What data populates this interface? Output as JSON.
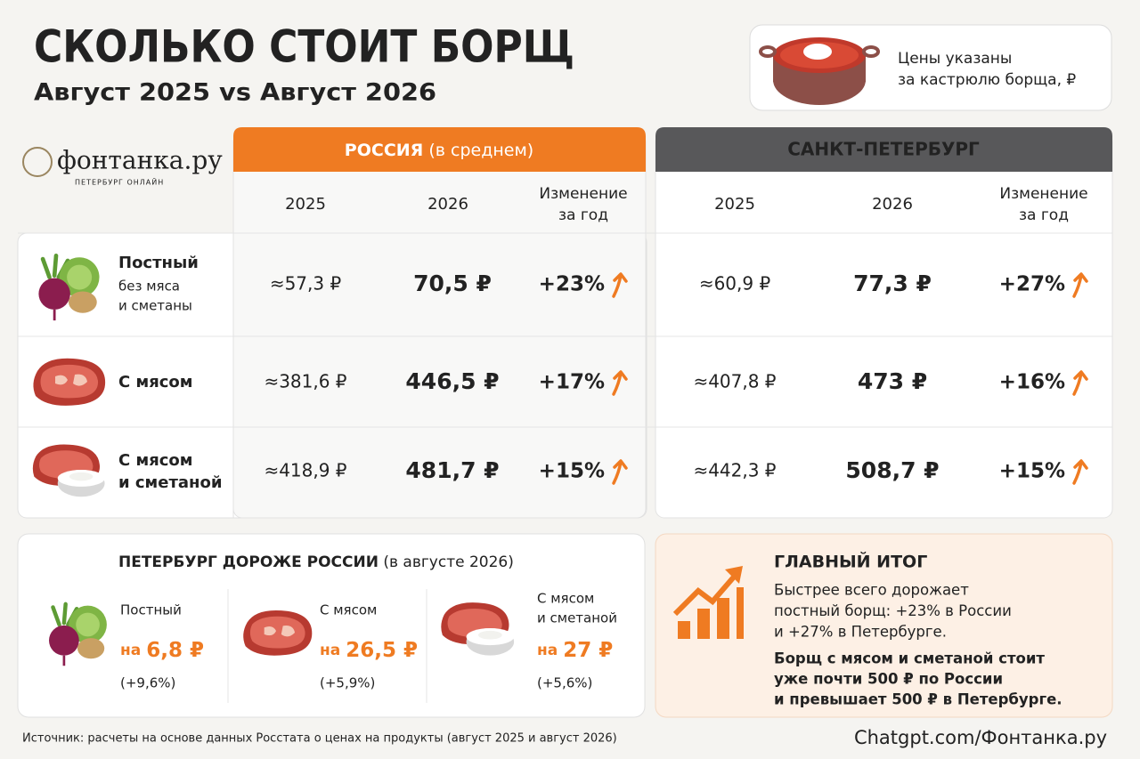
{
  "header": {
    "title": "СКОЛЬКО СТОИТ БОРЩ",
    "subtitle": "Август 2025 vs Август 2026"
  },
  "note": [
    "Цены указаны",
    "за кастрюлю борща, ₽"
  ],
  "logo": {
    "name": "фонтанка.ру",
    "tagline": "ПЕТЕРБУРГ ОНЛАЙН"
  },
  "table": {
    "groups": [
      {
        "title": "РОССИЯ",
        "subtitle": "(в среднем)",
        "columns": [
          "2025",
          "2026",
          [
            "Изменение",
            "за год"
          ]
        ]
      },
      {
        "title": "САНКТ-ПЕТЕРБУРГ",
        "columns": [
          "2025",
          "2026",
          [
            "Изменение",
            "за год"
          ]
        ]
      }
    ],
    "rows": [
      {
        "name": [
          "Постный"
        ],
        "note": [
          "без мяса",
          "и сметаны"
        ],
        "russia": [
          "≈57,3 ₽",
          "70,5 ₽",
          "+23%"
        ],
        "spb": [
          "≈60,9 ₽",
          "77,3 ₽",
          "+27%"
        ]
      },
      {
        "name": [
          "С мясом"
        ],
        "russia": [
          "≈381,6 ₽",
          "446,5 ₽",
          "+17%"
        ],
        "spb": [
          "≈407,8 ₽",
          "473 ₽",
          "+16%"
        ]
      },
      {
        "name": [
          "С мясом",
          "и сметаной"
        ],
        "russia": [
          "≈418,9 ₽",
          "481,7 ₽",
          "+15%"
        ],
        "spb": [
          "≈442,3 ₽",
          "508,7 ₽",
          "+15%"
        ]
      }
    ]
  },
  "comparison": {
    "title": "ПЕТЕРБУРГ ДОРОЖЕ РОССИИ",
    "title_note": "(в августе 2026)",
    "items": [
      {
        "name": [
          "Постный"
        ],
        "prefix": "на",
        "amount": "6,8 ₽",
        "percent": "(+9,6%)"
      },
      {
        "name": [
          "С мясом"
        ],
        "prefix": "на",
        "amount": "26,5 ₽",
        "percent": "(+5,9%)"
      },
      {
        "name": [
          "С мясом",
          "и сметаной"
        ],
        "prefix": "на",
        "amount": "27 ₽",
        "percent": "(+5,6%)"
      }
    ]
  },
  "summary": {
    "title": "ГЛАВНЫЙ ИТОГ",
    "paragraph1": [
      "Быстрее всего дорожает",
      "постный борщ: +23% в России",
      "и +27% в Петербурге."
    ],
    "paragraph2": [
      "Борщ с мясом и сметаной стоит",
      "уже почти 500 ₽ по России",
      "и превышает 500 ₽ в Петербурге."
    ]
  },
  "footer": {
    "source": "Источник: расчеты на основе данных Росстата о ценах на продукты (август 2025 и август 2026)",
    "credit": "Chatgpt.com/Фонтанка.ру"
  }
}
